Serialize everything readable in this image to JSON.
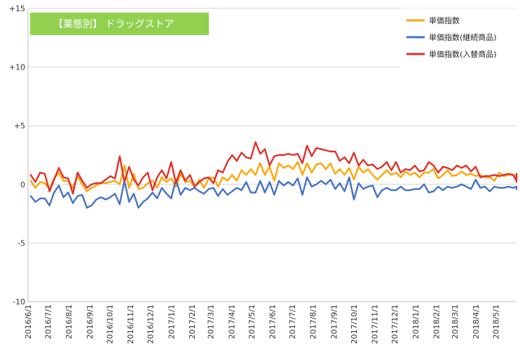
{
  "chart_data": {
    "type": "line",
    "title": "【業態別】 ドラッグストア",
    "title_bg_color": "#92D050",
    "xlabel": "",
    "ylabel": "",
    "ylim": [
      -10,
      15
    ],
    "yticks": [
      {
        "value": 15,
        "label": "+15"
      },
      {
        "value": 10,
        "label": "+10"
      },
      {
        "value": 5,
        "label": "+5"
      },
      {
        "value": 0,
        "label": "0"
      },
      {
        "value": -5,
        "label": "-5"
      },
      {
        "value": -10,
        "label": "-10"
      }
    ],
    "xlim": [
      "2016-06-01",
      "2018-06-01"
    ],
    "xtick_labels": [
      "2016/6/1",
      "2016/7/1",
      "2016/8/1",
      "2016/9/1",
      "2016/10/1",
      "2016/11/1",
      "2016/12/1",
      "2017/1/1",
      "2017/2/1",
      "2017/3/1",
      "2017/4/1",
      "2017/5/1",
      "2017/6/1",
      "2017/7/1",
      "2017/8/1",
      "2017/9/1",
      "2017/10/1",
      "2017/11/1",
      "2017/12/1",
      "2018/1/1",
      "2018/2/1",
      "2018/3/1",
      "2018/4/1",
      "2018/5/1"
    ],
    "gridlines": "horizontal",
    "legend_position": "top-right",
    "start_date": "2016-06-05",
    "interval_days": 7,
    "series": [
      {
        "name": "単価指数",
        "color": "#FFA500",
        "values": [
          0.3,
          -0.3,
          0.2,
          0.1,
          -0.4,
          0.5,
          1.0,
          0.3,
          0.3,
          -0.3,
          0.7,
          0.0,
          -0.6,
          -0.3,
          -0.1,
          0.1,
          0.1,
          0.2,
          0.3,
          0.0,
          1.6,
          -0.3,
          0.9,
          -0.4,
          -0.3,
          0.1,
          0.3,
          -0.3,
          0.6,
          0.2,
          0.5,
          -0.2,
          0.9,
          0.2,
          0.3,
          -0.2,
          0.4,
          -0.3,
          0.5,
          0.6,
          -0.2,
          0.6,
          0.3,
          0.8,
          0.3,
          1.2,
          0.8,
          1.3,
          0.8,
          1.8,
          0.8,
          1.5,
          0.3,
          1.8,
          1.4,
          1.6,
          1.3,
          1.9,
          0.8,
          1.8,
          1.0,
          1.7,
          1.8,
          1.3,
          1.8,
          0.9,
          1.3,
          0.8,
          1.4,
          0.4,
          1.5,
          1.0,
          1.3,
          0.8,
          0.4,
          0.8,
          1.2,
          0.8,
          1.0,
          0.6,
          1.1,
          0.8,
          1.0,
          0.6,
          1.0,
          1.0,
          1.3,
          0.5,
          0.8,
          1.2,
          0.7,
          0.8,
          1.1,
          0.8,
          0.9,
          0.7,
          0.8,
          0.6,
          0.6,
          0.3,
          1.0,
          0.7,
          0.8,
          0.8,
          0.7,
          0.6,
          0.8
        ]
      },
      {
        "name": "単価指数(継続商品)",
        "color": "#4472C4",
        "values": [
          -1.0,
          -1.5,
          -1.2,
          -1.2,
          -1.8,
          -0.7,
          -0.1,
          -1.1,
          -0.7,
          -1.6,
          -1.0,
          -0.9,
          -2.0,
          -1.8,
          -1.3,
          -1.1,
          -1.3,
          -1.1,
          -0.8,
          -1.7,
          0.3,
          -1.5,
          -0.8,
          -2.0,
          -1.5,
          -1.2,
          -0.7,
          -1.2,
          -0.3,
          -0.8,
          -1.2,
          0.4,
          -0.9,
          -0.3,
          -0.5,
          -0.3,
          -0.6,
          -0.8,
          -0.4,
          -0.3,
          -1.0,
          -0.4,
          -0.9,
          -0.6,
          -0.3,
          -0.5,
          0.2,
          -0.7,
          -0.7,
          0.3,
          -0.7,
          0.2,
          -0.9,
          0.3,
          -0.1,
          0.2,
          -0.1,
          0.5,
          -0.9,
          0.6,
          -0.2,
          0.0,
          0.3,
          0.0,
          0.4,
          -0.4,
          0.1,
          -0.6,
          0.6,
          -1.3,
          0.1,
          -0.4,
          -0.2,
          -0.1,
          -1.1,
          -0.5,
          -0.3,
          -0.5,
          -0.5,
          -0.2,
          -0.5,
          -0.5,
          -0.4,
          -0.4,
          0.0,
          -0.7,
          -0.6,
          -0.2,
          -0.5,
          -0.2,
          -0.3,
          -0.2,
          0.0,
          -0.2,
          -0.4,
          0.4,
          -0.3,
          -0.2,
          -0.6,
          -0.2,
          -0.3,
          -0.3,
          -0.2,
          -0.3,
          -0.2,
          -0.4,
          -0.2
        ]
      },
      {
        "name": "単価指数(入替商品)",
        "color": "#E0302A",
        "values": [
          0.8,
          0.2,
          1.0,
          0.9,
          -0.6,
          0.4,
          1.4,
          0.6,
          0.5,
          -0.8,
          1.0,
          0.3,
          -0.3,
          0.0,
          0.1,
          0.1,
          0.4,
          0.7,
          0.5,
          2.4,
          0.2,
          1.5,
          0.4,
          -0.1,
          0.6,
          1.0,
          -0.5,
          0.6,
          1.2,
          0.5,
          1.9,
          0.1,
          1.2,
          0.3,
          0.8,
          -0.2,
          0.2,
          0.5,
          0.6,
          0.1,
          1.2,
          1.0,
          1.9,
          2.5,
          2.0,
          2.7,
          2.3,
          2.2,
          3.6,
          2.6,
          3.0,
          1.6,
          2.4,
          2.5,
          2.5,
          2.6,
          2.5,
          2.6,
          1.8,
          3.3,
          2.4,
          3.1,
          3.0,
          2.9,
          2.8,
          2.8,
          2.0,
          2.3,
          1.8,
          2.7,
          1.6,
          2.1,
          1.6,
          1.7,
          1.3,
          1.5,
          1.9,
          1.2,
          1.9,
          1.0,
          1.3,
          1.2,
          1.6,
          1.1,
          1.2,
          1.9,
          1.6,
          1.0,
          1.5,
          1.4,
          1.2,
          1.6,
          1.4,
          1.6,
          1.1,
          1.5,
          0.6,
          0.7,
          0.7,
          0.8,
          0.7,
          0.8,
          0.9,
          0.8,
          0.3,
          0.2,
          0.9
        ]
      }
    ]
  }
}
